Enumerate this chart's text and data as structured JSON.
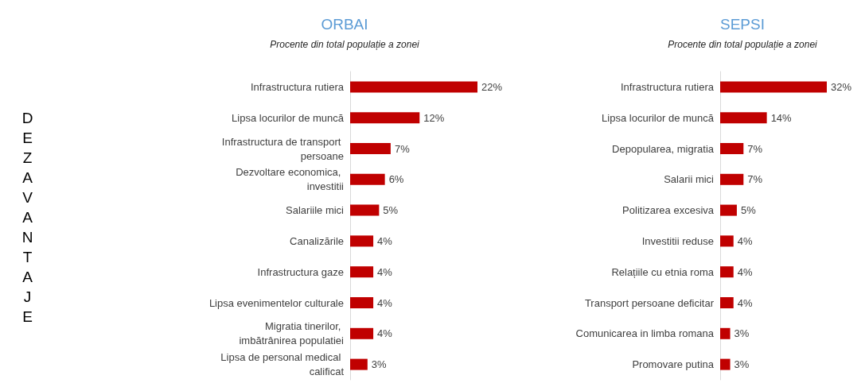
{
  "chart_data": [
    {
      "type": "bar",
      "orientation": "horizontal",
      "title": "ORBAI",
      "subtitle": "Procente din total populație a zonei",
      "ylabel": "DEZAVANTAJE",
      "categories": [
        "Infrastructura rutiera",
        "Lipsa locurilor de muncă",
        "Infrastructura de transport persoane",
        "Dezvoltare economica, investitii",
        "Salariile mici",
        "Canalizările",
        "Infrastructura gaze",
        "Lipsa evenimentelor culturale",
        "Migratia tinerilor, imbătrânirea populatiei",
        "Lipsa de personal medical calificat"
      ],
      "values": [
        22,
        12,
        7,
        6,
        5,
        4,
        4,
        4,
        4,
        3
      ],
      "value_labels": [
        "22%",
        "12%",
        "7%",
        "6%",
        "5%",
        "4%",
        "4%",
        "4%",
        "4%",
        "3%"
      ],
      "color": "#c00000"
    },
    {
      "type": "bar",
      "orientation": "horizontal",
      "title": "SEPSI",
      "subtitle": "Procente din total populație a zonei",
      "categories": [
        "Infrastructura rutiera",
        "Lipsa locurilor de muncă",
        "Depopularea, migratia",
        "Salarii mici",
        "Politizarea excesiva",
        "Investitii reduse",
        "Relațiile cu etnia roma",
        "Transport persoane deficitar",
        "Comunicarea in limba romana",
        "Promovare putina"
      ],
      "values": [
        32,
        14,
        7,
        7,
        5,
        4,
        4,
        4,
        3,
        3
      ],
      "value_labels": [
        "32%",
        "14%",
        "7%",
        "7%",
        "5%",
        "4%",
        "4%",
        "4%",
        "3%",
        "3%"
      ],
      "color": "#c00000"
    }
  ]
}
